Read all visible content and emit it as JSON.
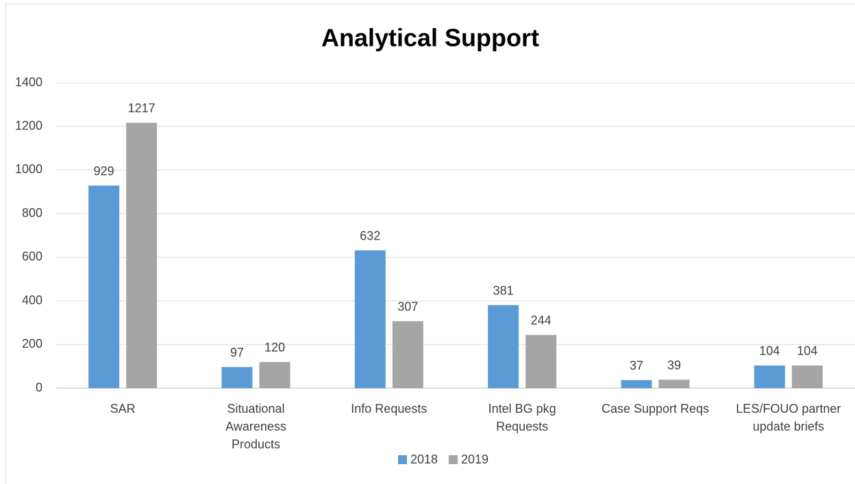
{
  "chart_data": {
    "type": "bar",
    "title": "Analytical Support",
    "categories": [
      "SAR",
      "Situational Awareness Products",
      "Info Requests",
      "Intel BG pkg Requests",
      "Case Support Reqs",
      "LES/FOUO partner update briefs"
    ],
    "series": [
      {
        "name": "2018",
        "color": "#5b9bd5",
        "values": [
          929,
          97,
          632,
          381,
          37,
          104
        ]
      },
      {
        "name": "2019",
        "color": "#a5a5a5",
        "values": [
          1217,
          120,
          307,
          244,
          39,
          104
        ]
      }
    ],
    "ylim": [
      0,
      1400
    ],
    "yticks": [
      0,
      200,
      400,
      600,
      800,
      1000,
      1200,
      1400
    ],
    "grid": true,
    "legend": "bottom"
  }
}
